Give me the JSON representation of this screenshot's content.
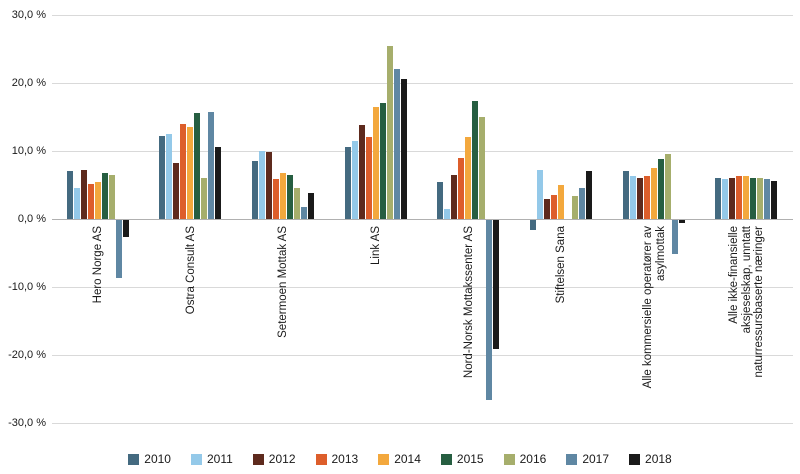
{
  "chart_data": {
    "type": "bar",
    "title": "",
    "xlabel": "",
    "ylabel": "",
    "ylim": [
      -30,
      30
    ],
    "grid": true,
    "legend_position": "bottom",
    "yticks": [
      {
        "value": 30,
        "label": "30,0 %"
      },
      {
        "value": 20,
        "label": "20,0 %"
      },
      {
        "value": 10,
        "label": "10,0 %"
      },
      {
        "value": 0,
        "label": "0,0 %"
      },
      {
        "value": -10,
        "label": "-10,0 %"
      },
      {
        "value": -20,
        "label": "-20,0 %"
      },
      {
        "value": -30,
        "label": "-30,0 %"
      }
    ],
    "categories": [
      "Hero Norge AS",
      "Ostra Consult AS",
      "Setermoen Mottak AS",
      "Link AS",
      "Nord-Norsk Mottakssenter AS",
      "Stiftelsen Sana",
      "Alle kommersielle operatører av\nasylmottak",
      "Alle ikke-finansielle\naksjeselskap, unntatt\nnaturressursbaserte næringer"
    ],
    "series": [
      {
        "name": "2010",
        "color": "#446a80",
        "values": [
          7.0,
          12.2,
          8.5,
          10.6,
          5.5,
          -1.5,
          7.0,
          6.0
        ]
      },
      {
        "name": "2011",
        "color": "#94c9e9",
        "values": [
          4.5,
          12.5,
          10.0,
          11.5,
          1.5,
          7.2,
          6.3,
          5.9
        ]
      },
      {
        "name": "2012",
        "color": "#5e2a1d",
        "values": [
          7.2,
          8.2,
          9.8,
          13.8,
          6.5,
          3.0,
          6.0,
          6.0
        ]
      },
      {
        "name": "2013",
        "color": "#dd5e2b",
        "values": [
          5.2,
          14.0,
          5.9,
          12.1,
          9.0,
          3.5,
          6.3,
          6.3
        ]
      },
      {
        "name": "2014",
        "color": "#f3a83d",
        "values": [
          5.5,
          13.5,
          6.8,
          16.5,
          12.1,
          5.0,
          7.5,
          6.3
        ]
      },
      {
        "name": "2015",
        "color": "#265e41",
        "values": [
          6.8,
          15.6,
          6.5,
          17.1,
          17.3,
          0,
          8.8,
          6.0
        ]
      },
      {
        "name": "2016",
        "color": "#a6ae6c",
        "values": [
          6.4,
          6.0,
          4.6,
          25.5,
          15.0,
          3.4,
          9.5,
          6.1
        ]
      },
      {
        "name": "2017",
        "color": "#5f87a3",
        "values": [
          -8.5,
          15.8,
          1.8,
          22.0,
          -26.5,
          4.6,
          -5.0,
          5.9
        ]
      },
      {
        "name": "2018",
        "color": "#1a1a1a",
        "values": [
          -2.5,
          10.6,
          3.8,
          20.6,
          -19.0,
          7.0,
          -0.5,
          5.6
        ]
      }
    ]
  }
}
